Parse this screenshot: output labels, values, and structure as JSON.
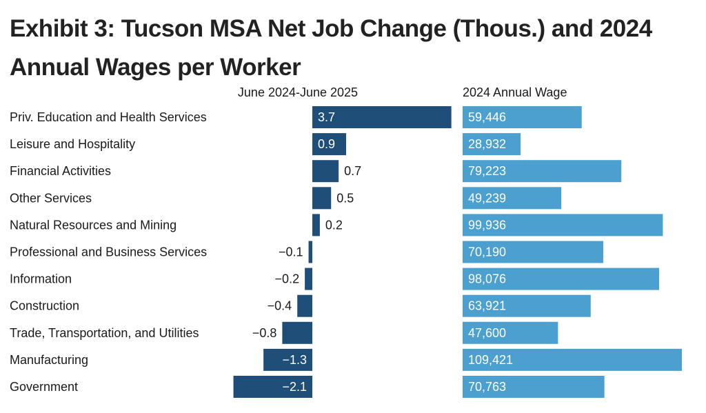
{
  "title": "Exhibit 3: Tucson MSA Net Job Change (Thous.) and 2024 Annual Wages per Worker",
  "chart_data": {
    "type": "bar",
    "categories": [
      "Priv. Education and Health Services",
      "Leisure and Hospitality",
      "Financial Activities",
      "Other Services",
      "Natural Resources and Mining",
      "Professional and Business Services",
      "Information",
      "Construction",
      "Trade, Transportation, and Utilities",
      "Manufacturing",
      "Government"
    ],
    "series": [
      {
        "name": "June 2024-June 2025",
        "values": [
          3.7,
          0.9,
          0.7,
          0.5,
          0.2,
          -0.1,
          -0.2,
          -0.4,
          -0.8,
          -1.3,
          -2.1
        ],
        "labels": [
          "3.7",
          "0.9",
          "0.7",
          "0.5",
          "0.2",
          "−0.1",
          "−0.2",
          "−0.4",
          "−0.8",
          "−1.3",
          "−2.1"
        ],
        "color": "#1f4e79"
      },
      {
        "name": "2024 Annual Wage",
        "values": [
          59446,
          28932,
          79223,
          49239,
          99936,
          70190,
          98076,
          63921,
          47600,
          109421,
          70763
        ],
        "labels": [
          "59,446",
          "28,932",
          "79,223",
          "49,239",
          "99,936",
          "70,190",
          "98,076",
          "63,921",
          "47,600",
          "109,421",
          "70,763"
        ],
        "color": "#4ba0cf"
      }
    ],
    "title": "Exhibit 3: Tucson MSA Net Job Change (Thous.) and 2024 Annual Wages per Worker",
    "xlabel": "",
    "ylabel": ""
  }
}
